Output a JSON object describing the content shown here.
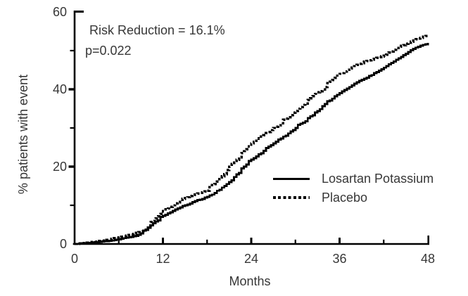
{
  "figure": {
    "background": "#ffffff",
    "annotation": {
      "line1": "Risk Reduction = 16.1%",
      "line2": "p=0.022"
    },
    "y_axis": {
      "title": "% patients with event",
      "ticks": [
        0,
        20,
        40,
        60
      ],
      "minor_ticks": [
        10,
        30,
        50
      ],
      "range": [
        0,
        60
      ]
    },
    "x_axis": {
      "title": "Months",
      "ticks": [
        0,
        12,
        24,
        36,
        48
      ],
      "minor_ticks": [
        6,
        18,
        30,
        42
      ],
      "range": [
        0,
        48
      ]
    },
    "legend": [
      {
        "label": "Losartan Potassium",
        "line_style": "solid"
      },
      {
        "label": "Placebo",
        "line_style": "dotted"
      }
    ],
    "colors": {
      "curve": "#000000",
      "axis": "#000000",
      "text": "#373737"
    }
  },
  "chart_data": {
    "type": "line",
    "subtype": "step-cumulative-incidence",
    "title": "",
    "xlabel": "Months",
    "ylabel": "% patients with event",
    "xlim": [
      0,
      48
    ],
    "ylim": [
      0,
      60
    ],
    "grid": false,
    "legend_position": "lower-right-inside",
    "annotations": [
      "Risk Reduction = 16.1%",
      "p=0.022"
    ],
    "x": [
      0,
      1,
      2,
      3,
      4,
      5,
      6,
      7,
      8,
      9,
      10,
      11,
      12,
      13,
      14,
      15,
      16,
      17,
      18,
      19,
      20,
      21,
      22,
      23,
      24,
      25,
      26,
      27,
      28,
      29,
      30,
      31,
      32,
      33,
      34,
      35,
      36,
      37,
      38,
      39,
      40,
      41,
      42,
      43,
      44,
      45,
      46,
      47,
      48
    ],
    "series": [
      {
        "name": "Losartan Potassium",
        "style": "solid",
        "values": [
          0,
          0.2,
          0.3,
          0.5,
          0.7,
          0.9,
          1.2,
          1.6,
          2.0,
          2.7,
          4.2,
          5.8,
          7.3,
          8.2,
          9.2,
          10.0,
          10.8,
          11.5,
          12.2,
          13.2,
          14.6,
          16.0,
          18.0,
          20.0,
          21.8,
          23.2,
          24.8,
          26.0,
          27.3,
          28.6,
          30.0,
          31.4,
          33.0,
          34.4,
          36.2,
          37.6,
          39.0,
          40.2,
          41.5,
          42.5,
          43.5,
          44.5,
          45.6,
          46.8,
          48.0,
          49.2,
          50.5,
          51.3,
          52.0
        ]
      },
      {
        "name": "Placebo",
        "style": "dotted",
        "values": [
          0,
          0.2,
          0.4,
          0.6,
          0.9,
          1.3,
          1.7,
          2.1,
          2.6,
          3.3,
          4.8,
          6.6,
          8.5,
          9.6,
          10.8,
          11.9,
          12.7,
          13.2,
          13.8,
          15.5,
          17.5,
          20.0,
          21.8,
          24.0,
          26.0,
          27.3,
          28.7,
          30.0,
          31.2,
          32.8,
          34.4,
          36.0,
          37.7,
          39.2,
          40.6,
          42.4,
          44.0,
          45.0,
          46.0,
          46.8,
          47.5,
          48.1,
          48.7,
          49.8,
          51.0,
          51.8,
          52.6,
          53.3,
          54.0
        ]
      }
    ]
  }
}
